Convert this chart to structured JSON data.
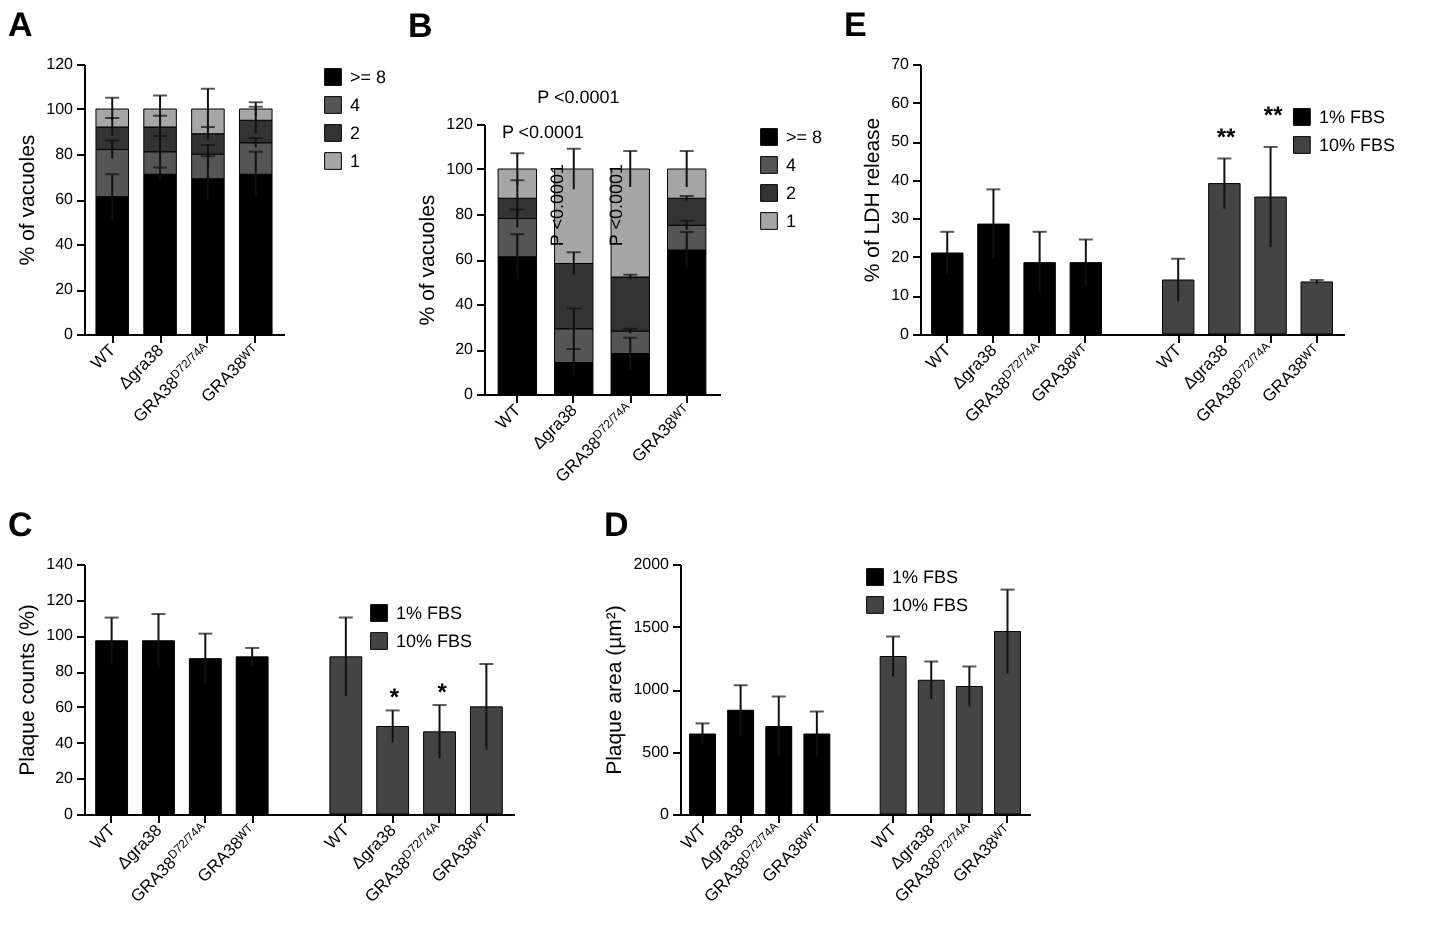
{
  "chart_data": [
    {
      "type": "bar",
      "title": "A",
      "ylabel": "% of vacuoles",
      "categories": [
        "WT",
        "Δgra38",
        "GRA38$^{D72/74A}$",
        "GRA38ᵂᵀ"
      ],
      "stacked": true,
      "legend": "right",
      "ylim": [
        0,
        120
      ],
      "yticks": [
        0,
        20,
        40,
        60,
        80,
        100,
        120
      ],
      "series": [
        {
          "name": ">= 8",
          "color": "#000000",
          "values": [
            61,
            71,
            69,
            71
          ],
          "errors": [
            10,
            3,
            10,
            10
          ]
        },
        {
          "name": "4",
          "color": "#555555",
          "values": [
            21,
            10,
            11,
            14
          ],
          "errors": [
            4,
            7,
            4,
            2
          ]
        },
        {
          "name": "2",
          "color": "#333333",
          "values": [
            10,
            11,
            9,
            10
          ],
          "errors": [
            4,
            5,
            3,
            6
          ]
        },
        {
          "name": "1",
          "color": "#a6a6a6",
          "values": [
            8,
            8,
            11,
            5
          ],
          "errors": [
            5,
            6,
            9,
            3
          ]
        }
      ]
    },
    {
      "type": "bar",
      "title": "B",
      "ylabel": "% of vacuoles",
      "categories": [
        "WT",
        "Δgra38",
        "GRA38$^{D72/74A}$",
        "GRA38ᵂᵀ"
      ],
      "stacked": true,
      "legend": "right",
      "ylim": [
        0,
        120
      ],
      "yticks": [
        0,
        20,
        40,
        60,
        80,
        100,
        120
      ],
      "annotations": [
        "P <0.0001",
        "P <0.0001",
        "P <0.0001",
        "P <0.0001"
      ],
      "series": [
        {
          "name": ">= 8",
          "color": "#000000",
          "values": [
            61,
            14,
            18,
            64
          ],
          "errors": [
            10,
            6,
            7,
            8
          ]
        },
        {
          "name": "4",
          "color": "#555555",
          "values": [
            17,
            15,
            10,
            11
          ],
          "errors": [
            4,
            9,
            1,
            2
          ]
        },
        {
          "name": "2",
          "color": "#333333",
          "values": [
            9,
            29,
            24,
            12
          ],
          "errors": [
            8,
            5,
            1,
            1
          ]
        },
        {
          "name": "1",
          "color": "#a6a6a6",
          "values": [
            13,
            42,
            48,
            13
          ],
          "errors": [
            7,
            9,
            8,
            8
          ]
        }
      ]
    },
    {
      "type": "bar",
      "title": "E",
      "ylabel": "% of LDH release",
      "categories": [
        "WT",
        "Δgra38",
        "GRA38$^{D72/74A}$",
        "GRA38ᵂᵀ",
        "WT",
        "Δgra38",
        "GRA38$^{D72/74A}$",
        "GRA38ᵂᵀ"
      ],
      "legend": "top right",
      "ylim": [
        0,
        70
      ],
      "yticks": [
        0,
        10,
        20,
        30,
        40,
        50,
        60,
        70
      ],
      "annotations": [
        "**",
        "**"
      ],
      "series": [
        {
          "name": "1% FBS",
          "color": "#000000",
          "values": [
            21,
            28.5,
            18.5,
            18.5,
            null,
            null,
            null,
            null
          ],
          "errors": [
            5.5,
            9,
            8,
            6,
            null,
            null,
            null,
            null
          ]
        },
        {
          "name": "10% FBS",
          "color": "#444444",
          "values": [
            null,
            null,
            null,
            null,
            14,
            39,
            35.5,
            13.5
          ],
          "errors": [
            null,
            null,
            null,
            null,
            5.5,
            6.5,
            13,
            0.5
          ]
        }
      ]
    },
    {
      "type": "bar",
      "title": "C",
      "ylabel": "Plaque counts (%)",
      "categories": [
        "WT",
        "Δgra38",
        "GRA38$^{D72/74A}$",
        "GRA38ᵂᵀ",
        "WT",
        "Δgra38",
        "GRA38$^{D72/74A}$",
        "GRA38ᵂᵀ"
      ],
      "legend": "top right",
      "ylim": [
        0,
        140
      ],
      "yticks": [
        0,
        20,
        40,
        60,
        80,
        100,
        120,
        140
      ],
      "annotations": [
        "*",
        "*"
      ],
      "series": [
        {
          "name": "1% FBS",
          "color": "#000000",
          "values": [
            97,
            97,
            87,
            88,
            null,
            null,
            null,
            null
          ],
          "errors": [
            13,
            15,
            14,
            5,
            null,
            null,
            null,
            null
          ]
        },
        {
          "name": "10% FBS",
          "color": "#444444",
          "values": [
            null,
            null,
            null,
            null,
            88,
            49,
            46,
            60
          ],
          "errors": [
            null,
            null,
            null,
            null,
            22,
            9,
            15,
            24
          ]
        }
      ]
    },
    {
      "type": "bar",
      "title": "D",
      "ylabel": "Plaque area (µm²)",
      "categories": [
        "WT",
        "Δgra38",
        "GRA38$^{D72/74A}$",
        "GRA38ᵂᵀ",
        "WT",
        "Δgra38",
        "GRA38$^{D72/74A}$",
        "GRA38ᵂᵀ"
      ],
      "legend": "top",
      "ylim": [
        0,
        2000
      ],
      "yticks": [
        0,
        500,
        1000,
        1500,
        2000
      ],
      "series": [
        {
          "name": "1% FBS",
          "color": "#000000",
          "values": [
            640,
            830,
            700,
            640,
            null,
            null,
            null,
            null
          ],
          "errors": [
            85,
            200,
            240,
            180,
            null,
            null,
            null,
            null
          ]
        },
        {
          "name": "10% FBS",
          "color": "#444444",
          "values": [
            null,
            null,
            null,
            null,
            1260,
            1070,
            1020,
            1460
          ],
          "errors": [
            null,
            null,
            null,
            null,
            160,
            150,
            160,
            335
          ]
        }
      ]
    }
  ]
}
